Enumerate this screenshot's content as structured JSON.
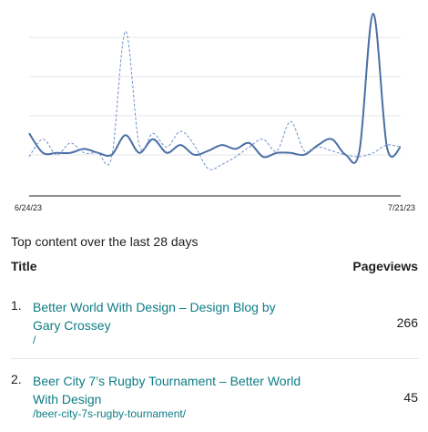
{
  "chart_data": {
    "type": "line",
    "x": [
      "6/24/23",
      "6/25/23",
      "6/26/23",
      "6/27/23",
      "6/28/23",
      "6/29/23",
      "6/30/23",
      "7/1/23",
      "7/2/23",
      "7/3/23",
      "7/4/23",
      "7/5/23",
      "7/6/23",
      "7/7/23",
      "7/8/23",
      "7/9/23",
      "7/10/23",
      "7/11/23",
      "7/12/23",
      "7/13/23",
      "7/14/23",
      "7/15/23",
      "7/16/23",
      "7/17/23",
      "7/18/23",
      "7/19/23",
      "7/20/23",
      "7/21/23"
    ],
    "x_tick_labels": [
      "6/24/23",
      "7/21/23"
    ],
    "ylim": [
      0,
      100
    ],
    "grid": true,
    "series": [
      {
        "style": "solid",
        "color": "#4a6fa5",
        "values": [
          32,
          22,
          22,
          22,
          24,
          22,
          21,
          31,
          22,
          29,
          22,
          26,
          21,
          23,
          26,
          24,
          27,
          20,
          22,
          22,
          21,
          26,
          29,
          21,
          23,
          93,
          25,
          25
        ]
      },
      {
        "style": "dashed",
        "color": "#6f8fc6",
        "values": [
          20,
          29,
          21,
          27,
          22,
          22,
          20,
          84,
          26,
          32,
          25,
          33,
          26,
          14,
          16,
          20,
          25,
          29,
          23,
          38,
          23,
          25,
          23,
          21,
          20,
          22,
          26,
          25
        ]
      }
    ]
  },
  "list": {
    "section_title": "Top content over the last 28 days",
    "col_title": "Title",
    "col_views": "Pageviews",
    "rows": [
      {
        "num": "1.",
        "title": "Better World With Design – Design Blog by Gary Crossey",
        "path": "/",
        "views": "266"
      },
      {
        "num": "2.",
        "title": "Beer City 7’s Rugby Tournament – Better World With Design",
        "path": "/beer-city-7s-rugby-tournament/",
        "views": "45"
      }
    ]
  },
  "colors": {
    "link": "#0e7c86",
    "grid": "#e6e6e6",
    "axis": "#1e1e1e"
  }
}
